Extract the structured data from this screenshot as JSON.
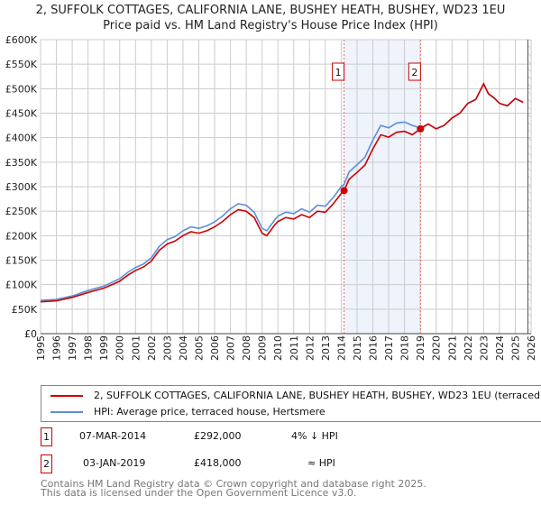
{
  "title": "2, SUFFOLK COTTAGES, CALIFORNIA LANE, BUSHEY HEATH, BUSHEY, WD23 1EU",
  "subtitle": "Price paid vs. HM Land Registry's House Price Index (HPI)",
  "colors": {
    "property": "#cc0000",
    "hpi": "#5b8fd6",
    "band": "#eef3fc",
    "grid": "#cccccc"
  },
  "chart_data": {
    "type": "line",
    "title": "Price paid vs. HM Land Registry's House Price Index (HPI)",
    "xlim": [
      1995,
      2026
    ],
    "ylim": [
      0,
      600000
    ],
    "x_ticks": [
      "1995",
      "1996",
      "1997",
      "1998",
      "1999",
      "2000",
      "2001",
      "2002",
      "2003",
      "2004",
      "2005",
      "2006",
      "2007",
      "2008",
      "2009",
      "2010",
      "2011",
      "2012",
      "2013",
      "2014",
      "2015",
      "2016",
      "2017",
      "2018",
      "2019",
      "2020",
      "2021",
      "2022",
      "2023",
      "2024",
      "2025",
      "2026"
    ],
    "y_ticks": [
      {
        "v": 0,
        "label": "£0"
      },
      {
        "v": 50000,
        "label": "£50K"
      },
      {
        "v": 100000,
        "label": "£100K"
      },
      {
        "v": 150000,
        "label": "£150K"
      },
      {
        "v": 200000,
        "label": "£200K"
      },
      {
        "v": 250000,
        "label": "£250K"
      },
      {
        "v": 300000,
        "label": "£300K"
      },
      {
        "v": 350000,
        "label": "£350K"
      },
      {
        "v": 400000,
        "label": "£400K"
      },
      {
        "v": 450000,
        "label": "£450K"
      },
      {
        "v": 500000,
        "label": "£500K"
      },
      {
        "v": 550000,
        "label": "£550K"
      },
      {
        "v": 600000,
        "label": "£600K"
      }
    ],
    "grid": true,
    "projection_start": 2025.8,
    "x": [
      1995,
      1996,
      1997,
      1998,
      1999,
      2000,
      2000.5,
      2001,
      2001.5,
      2002,
      2002.5,
      2003,
      2003.5,
      2004,
      2004.5,
      2005,
      2005.5,
      2006,
      2006.5,
      2007,
      2007.5,
      2008,
      2008.5,
      2009,
      2009.3,
      2009.8,
      2010,
      2010.5,
      2011,
      2011.5,
      2012,
      2012.5,
      2013,
      2013.5,
      2014,
      2014.18,
      2014.5,
      2015,
      2015.5,
      2016,
      2016.5,
      2017,
      2017.5,
      2018,
      2018.5,
      2019,
      2019.5,
      2020,
      2020.5,
      2021,
      2021.5,
      2022,
      2022.5,
      2023,
      2023.3,
      2023.7,
      2024,
      2024.5,
      2025,
      2025.5
    ],
    "series": [
      {
        "name": "2, SUFFOLK COTTAGES, CALIFORNIA LANE, BUSHEY HEATH, BUSHEY, WD23 1EU (terraced house)",
        "color": "#cc0000",
        "values": [
          65000,
          67000,
          74000,
          84000,
          93000,
          107000,
          119000,
          129000,
          136000,
          148000,
          170000,
          183000,
          189000,
          200000,
          208000,
          205000,
          210000,
          218000,
          229000,
          243000,
          253000,
          250000,
          237000,
          205000,
          200000,
          222000,
          229000,
          237000,
          234000,
          243000,
          237000,
          250000,
          248000,
          265000,
          286000,
          292000,
          315000,
          329000,
          344000,
          377000,
          406000,
          401000,
          411000,
          413000,
          406000,
          418000,
          428000,
          418000,
          425000,
          440000,
          450000,
          470000,
          478000,
          510000,
          490000,
          480000,
          470000,
          465000,
          480000,
          472000
        ]
      },
      {
        "name": "HPI: Average price, terraced house, Hertsmere",
        "color": "#5b8fd6",
        "values": [
          68000,
          70000,
          77000,
          88000,
          97000,
          112000,
          125000,
          135000,
          142000,
          155000,
          178000,
          192000,
          198000,
          210000,
          218000,
          215000,
          220000,
          228000,
          240000,
          255000,
          265000,
          262000,
          248000,
          215000,
          210000,
          232000,
          240000,
          248000,
          245000,
          255000,
          248000,
          262000,
          260000,
          278000,
          300000,
          305000,
          330000,
          345000,
          360000,
          395000,
          425000,
          420000,
          430000,
          432000,
          425000,
          420000,
          428000,
          418000,
          425000,
          440000,
          450000,
          470000,
          478000,
          510000,
          490000,
          480000,
          470000,
          465000,
          480000,
          472000
        ]
      }
    ],
    "sales": [
      {
        "id": "1",
        "x": 2014.18,
        "y": 292000
      },
      {
        "id": "2",
        "x": 2019.01,
        "y": 418000
      }
    ]
  },
  "legend": {
    "property": "2, SUFFOLK COTTAGES, CALIFORNIA LANE, BUSHEY HEATH, BUSHEY, WD23 1EU (terraced house)",
    "hpi": "HPI: Average price, terraced house, Hertsmere"
  },
  "transactions": [
    {
      "id": "1",
      "date": "07-MAR-2014",
      "price": "£292,000",
      "rel": "4% ↓ HPI"
    },
    {
      "id": "2",
      "date": "03-JAN-2019",
      "price": "£418,000",
      "rel": "≈ HPI"
    }
  ],
  "footer": {
    "line1": "Contains HM Land Registry data © Crown copyright and database right 2025.",
    "line2": "This data is licensed under the Open Government Licence v3.0."
  }
}
